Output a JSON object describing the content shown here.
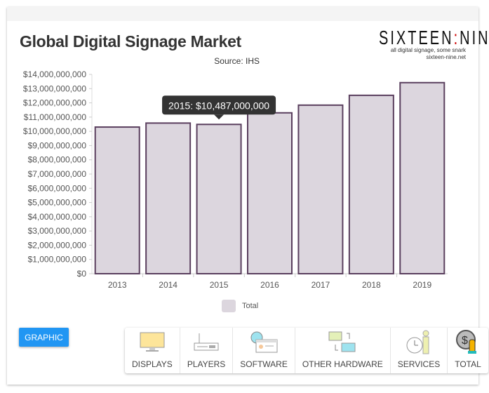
{
  "chart_data": {
    "type": "bar",
    "title": "Global Digital Signage Market",
    "subtitle": "Source: IHS",
    "categories": [
      "2013",
      "2014",
      "2015",
      "2016",
      "2017",
      "2018",
      "2019"
    ],
    "series": [
      {
        "name": "Total",
        "values": [
          10300000000,
          10580000000,
          10487000000,
          11300000000,
          11840000000,
          12530000000,
          13420000000
        ]
      }
    ],
    "ylim": [
      0,
      14000000000
    ],
    "yticks": [
      "$0",
      "$1,000,000,000",
      "$2,000,000,000",
      "$3,000,000,000",
      "$4,000,000,000",
      "$5,000,000,000",
      "$6,000,000,000",
      "$7,000,000,000",
      "$8,000,000,000",
      "$9,000,000,000",
      "$10,000,000,000",
      "$11,000,000,000",
      "$12,000,000,000",
      "$13,000,000,000",
      "$14,000,000,000"
    ],
    "bar_fill": "#dcd6de",
    "bar_stroke": "#5a3f5e",
    "legend_position": "bottom",
    "tooltip": {
      "category": "2015",
      "text": "2015:  $10,487,000,000"
    }
  },
  "logo": {
    "name": "SIXTEEN:NINE",
    "tagline": "all digital signage, some snark",
    "url": "sixteen-nine.net"
  },
  "graphic_button": "GRAPHIC",
  "tabs": [
    {
      "label": "DISPLAYS",
      "icon": "monitor-icon"
    },
    {
      "label": "PLAYERS",
      "icon": "router-icon"
    },
    {
      "label": "SOFTWARE",
      "icon": "globe-window-icon"
    },
    {
      "label": "OTHER HARDWARE",
      "icon": "computers-sync-icon"
    },
    {
      "label": "SERVICES",
      "icon": "clock-person-icon"
    },
    {
      "label": "TOTAL",
      "icon": "dollar-coin-hand-icon"
    }
  ]
}
